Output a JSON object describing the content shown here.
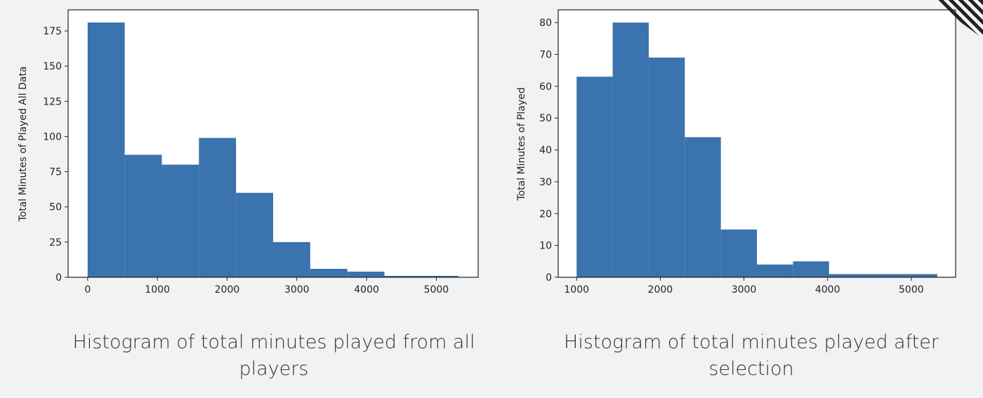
{
  "colors": {
    "bar": "#3a73ad",
    "background": "#f2f2f2",
    "plot_bg": "#ffffff",
    "axis": "#222222"
  },
  "decoration": {
    "corner_stripes_icon": "diagonal-stripes"
  },
  "captions": {
    "left": "Histogram of total minutes played from all players",
    "right": "Histogram of total minutes played after selection"
  },
  "chart_data": [
    {
      "type": "bar",
      "title": "",
      "xlabel": "",
      "ylabel": "Total Minutes of Played All Data",
      "bin_edges": [
        0,
        532,
        1064,
        1596,
        2128,
        2660,
        3192,
        3724,
        4256,
        4788,
        5320
      ],
      "values": [
        181,
        87,
        80,
        99,
        60,
        25,
        6,
        4,
        1,
        1
      ],
      "xlim": [
        -280,
        5600
      ],
      "ylim": [
        0,
        190
      ],
      "xticks": [
        0,
        1000,
        2000,
        3000,
        4000,
        5000
      ],
      "yticks": [
        0,
        25,
        50,
        75,
        100,
        125,
        150,
        175
      ],
      "grid": false
    },
    {
      "type": "bar",
      "title": "",
      "xlabel": "",
      "ylabel": "Total Minutes of Played",
      "bin_edges": [
        1000,
        1431,
        1862,
        2293,
        2724,
        3155,
        3586,
        4017,
        4448,
        4879,
        5310
      ],
      "values": [
        63,
        80,
        69,
        44,
        15,
        4,
        5,
        1,
        1,
        1
      ],
      "xlim": [
        780,
        5530
      ],
      "ylim": [
        0,
        84
      ],
      "xticks": [
        1000,
        2000,
        3000,
        4000,
        5000
      ],
      "yticks": [
        0,
        10,
        20,
        30,
        40,
        50,
        60,
        70,
        80
      ],
      "grid": false
    }
  ]
}
